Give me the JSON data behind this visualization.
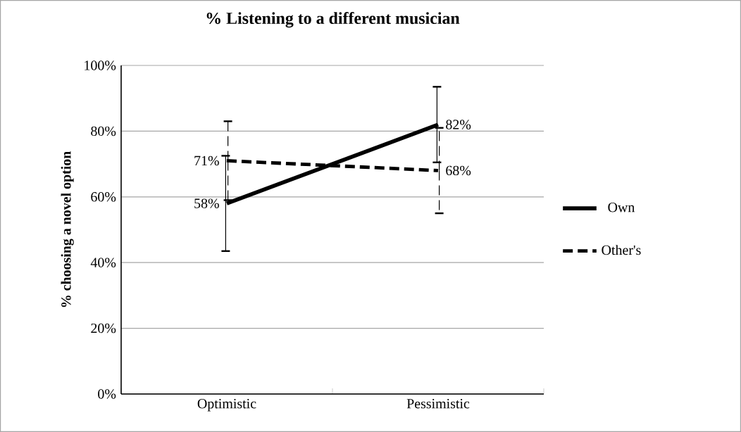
{
  "chart_data": {
    "type": "line",
    "title": "% Listening to a different musician",
    "ylabel": "% choosing a novel option",
    "categories": [
      "Optimistic",
      "Pessimistic"
    ],
    "series": [
      {
        "name": "Own",
        "color": "#000000",
        "line_style": "solid",
        "values": [
          58,
          82
        ],
        "errors": [
          14.5,
          11.5
        ],
        "value_labels": [
          "58%",
          "82%"
        ]
      },
      {
        "name": "Other's",
        "color": "#000000",
        "line_style": "dashed",
        "values": [
          71,
          68
        ],
        "errors": [
          12,
          13
        ],
        "value_labels": [
          "71%",
          "68%"
        ]
      }
    ],
    "ylim": [
      0,
      100
    ],
    "yticks": [
      {
        "value": 0,
        "label": "0%"
      },
      {
        "value": 20,
        "label": "20%"
      },
      {
        "value": 40,
        "label": "40%"
      },
      {
        "value": 60,
        "label": "60%"
      },
      {
        "value": 80,
        "label": "80%"
      },
      {
        "value": 100,
        "label": "100%"
      }
    ],
    "grid": "y",
    "legend": "right"
  }
}
